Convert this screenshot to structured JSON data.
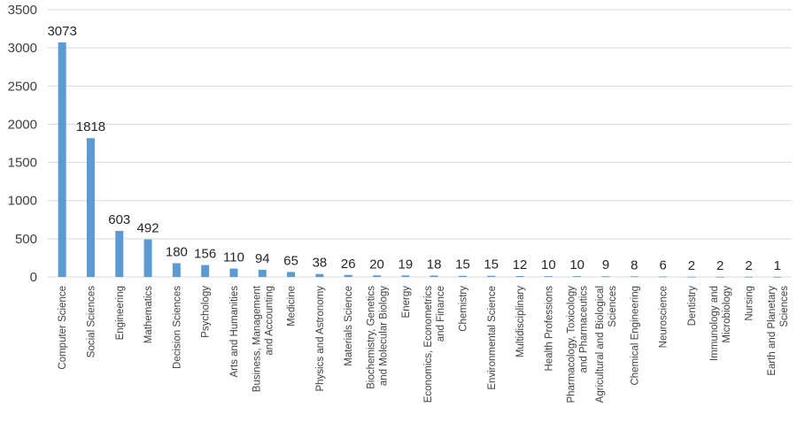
{
  "chart_data": {
    "type": "bar",
    "title": "",
    "xlabel": "",
    "ylabel": "",
    "ylim": [
      0,
      3500
    ],
    "yticks": [
      0,
      500,
      1000,
      1500,
      2000,
      2500,
      3000,
      3500
    ],
    "grid": true,
    "legend": "none",
    "bar_color": "#5b9bd5",
    "categories": [
      [
        "Computer Science"
      ],
      [
        "Social Sciences"
      ],
      [
        "Engineering"
      ],
      [
        "Mathematics"
      ],
      [
        "Decision Sciences"
      ],
      [
        "Psychology"
      ],
      [
        "Arts and Humanities"
      ],
      [
        "Business, Management",
        "and Accounting"
      ],
      [
        "Medicine"
      ],
      [
        "Physics and Astronomy"
      ],
      [
        "Materials Science"
      ],
      [
        "Biochemistry, Genetics",
        "and Molecular Biology"
      ],
      [
        "Energy"
      ],
      [
        "Economics, Econometrics",
        "and Finance"
      ],
      [
        "Chemistry"
      ],
      [
        "Environmental Science"
      ],
      [
        "Multidisciplinary"
      ],
      [
        "Health Professions"
      ],
      [
        "Pharmacology, Toxicology",
        "and Pharmaceutics"
      ],
      [
        "Agricultural and Biological",
        "Sciences"
      ],
      [
        "Chemical Engineering"
      ],
      [
        "Neuroscience"
      ],
      [
        "Dentistry"
      ],
      [
        "Immunology and",
        "Microbiology"
      ],
      [
        "Nursing"
      ],
      [
        "Earth and Planetary",
        "Sciences"
      ]
    ],
    "values": [
      3073,
      1818,
      603,
      492,
      180,
      156,
      110,
      94,
      65,
      38,
      26,
      20,
      19,
      18,
      15,
      15,
      12,
      10,
      10,
      9,
      8,
      6,
      2,
      2,
      2,
      1
    ]
  }
}
